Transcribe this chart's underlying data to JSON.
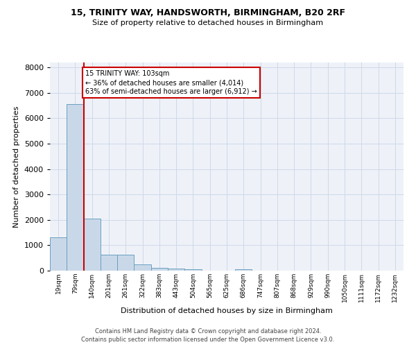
{
  "title_line1": "15, TRINITY WAY, HANDSWORTH, BIRMINGHAM, B20 2RF",
  "title_line2": "Size of property relative to detached houses in Birmingham",
  "xlabel": "Distribution of detached houses by size in Birmingham",
  "ylabel": "Number of detached properties",
  "categories": [
    "19sqm",
    "79sqm",
    "140sqm",
    "201sqm",
    "261sqm",
    "322sqm",
    "383sqm",
    "443sqm",
    "504sqm",
    "565sqm",
    "625sqm",
    "686sqm",
    "747sqm",
    "807sqm",
    "868sqm",
    "929sqm",
    "990sqm",
    "1050sqm",
    "1111sqm",
    "1172sqm",
    "1232sqm"
  ],
  "values": [
    1300,
    6550,
    2060,
    640,
    630,
    250,
    120,
    90,
    55,
    0,
    0,
    60,
    0,
    0,
    0,
    0,
    0,
    0,
    0,
    0,
    0
  ],
  "bar_color": "#c9d8e8",
  "bar_edge_color": "#6a9fc0",
  "annotation_text": "15 TRINITY WAY: 103sqm\n← 36% of detached houses are smaller (4,014)\n63% of semi-detached houses are larger (6,912) →",
  "annotation_box_color": "#ffffff",
  "annotation_box_edge": "#cc0000",
  "red_line_color": "#cc0000",
  "ylim": [
    0,
    8200
  ],
  "yticks": [
    0,
    1000,
    2000,
    3000,
    4000,
    5000,
    6000,
    7000,
    8000
  ],
  "grid_color": "#d0d8e8",
  "background_color": "#eef2f8",
  "footer_line1": "Contains HM Land Registry data © Crown copyright and database right 2024.",
  "footer_line2": "Contains public sector information licensed under the Open Government Licence v3.0."
}
